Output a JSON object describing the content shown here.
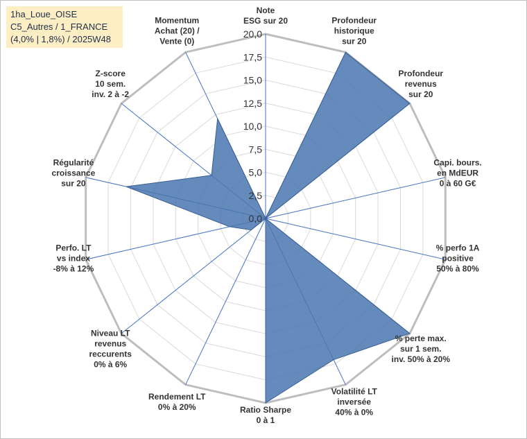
{
  "title_lines": [
    "1ha_Loue_OISE",
    "C5_Autres / 1_FRANCE",
    "(4,0% | 1,8%) / 2025W48"
  ],
  "chart_data": {
    "type": "radar",
    "r_min": 0,
    "r_max": 20,
    "r_step": 2.5,
    "tick_labels": [
      "0,0",
      "2,5",
      "5,0",
      "7,5",
      "10,0",
      "12,5",
      "15,0",
      "17,5",
      "20,0"
    ],
    "axes": [
      {
        "label_lines": [
          "Note",
          "ESG sur 20"
        ],
        "value": 0
      },
      {
        "label_lines": [
          "Profondeur",
          "historique",
          "sur 20"
        ],
        "value": 20
      },
      {
        "label_lines": [
          "Profondeur",
          "revenus",
          "sur 20"
        ],
        "value": 20
      },
      {
        "label_lines": [
          "Capi. bours.",
          "en MdEUR",
          "0 à 60 G€"
        ],
        "value": 0
      },
      {
        "label_lines": [
          "% perfo 1A",
          "positive",
          "50% à 80%"
        ],
        "value": 0
      },
      {
        "label_lines": [
          "% perte max.",
          "sur 1 sem.",
          "inv. 50% à 20%"
        ],
        "value": 20
      },
      {
        "label_lines": [
          "Volatilité LT",
          "inversée",
          "40% à 0%"
        ],
        "value": 17
      },
      {
        "label_lines": [
          "Ratio Sharpe",
          "0 à 1"
        ],
        "value": 20
      },
      {
        "label_lines": [
          "Rendement LT",
          "0% à 20%"
        ],
        "value": 0
      },
      {
        "label_lines": [
          "Niveau LT",
          "revenus",
          "reccurents",
          "0% à 6%"
        ],
        "value": 2
      },
      {
        "label_lines": [
          "Perfo. LT",
          "vs index",
          "-8% à 12%"
        ],
        "value": 4
      },
      {
        "label_lines": [
          "Régularité",
          "croissance",
          "sur 20"
        ],
        "value": 15.5
      },
      {
        "label_lines": [
          "Z-score",
          "10 sem.",
          "inv. 2 à -2"
        ],
        "value": 7.5
      },
      {
        "label_lines": [
          "Momentum",
          "Achat (20) /",
          "Vente (0)"
        ],
        "value": 12
      }
    ],
    "series_color": "#4a76b0",
    "grid": true
  }
}
